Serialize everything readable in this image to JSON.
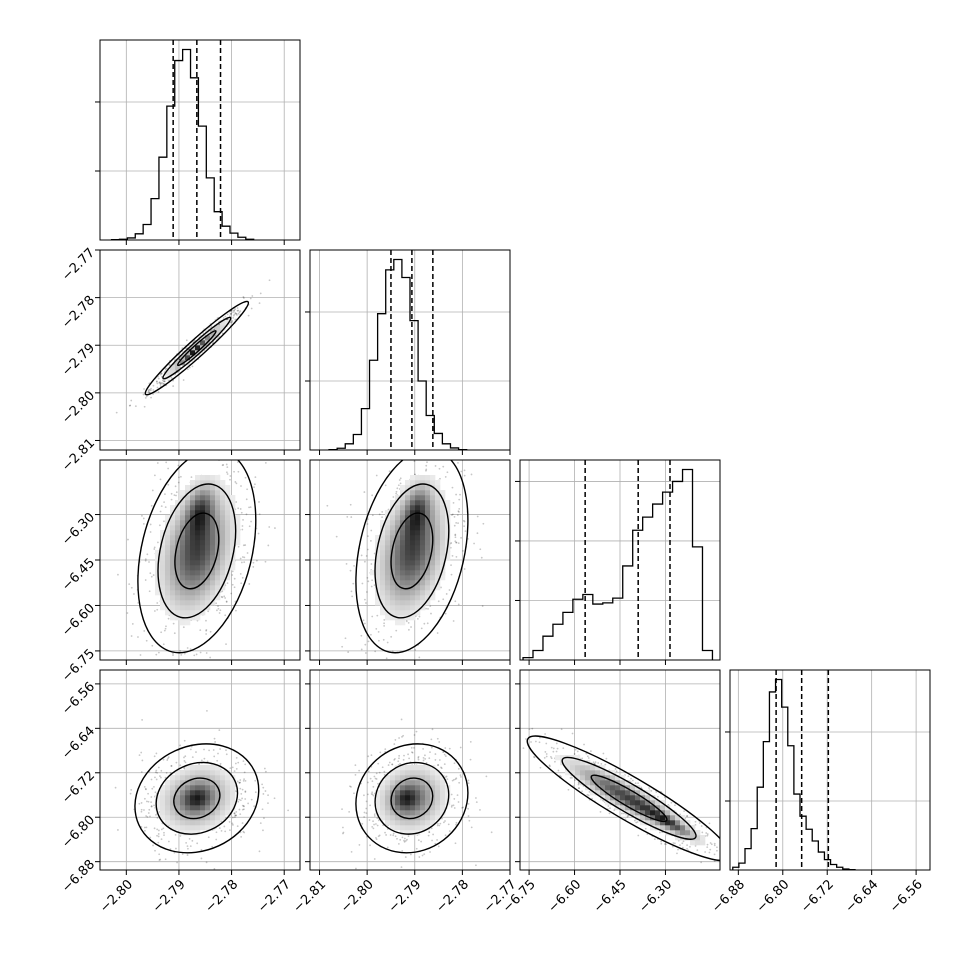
{
  "chart_data": {
    "type": "corner",
    "grid": true,
    "params": [
      {
        "range": [
          -2.805,
          -2.767
        ],
        "ticks": [
          -2.8,
          -2.79,
          -2.78,
          -2.77
        ],
        "tick_labels": [
          "−2.80",
          "−2.79",
          "−2.78",
          "−2.77"
        ],
        "quantiles": [
          -2.7911,
          -2.7866,
          -2.7821
        ],
        "hist": {
          "edges_start": -2.8028,
          "bin_width": 0.0015,
          "counts": [
            1,
            2,
            6,
            18,
            45,
            120,
            240,
            388,
            520,
            552,
            470,
            330,
            180,
            82,
            40,
            20,
            8,
            2
          ]
        }
      },
      {
        "range": [
          -2.812,
          -2.77
        ],
        "ticks": [
          -2.81,
          -2.8,
          -2.79,
          -2.78,
          -2.77
        ],
        "tick_labels": [
          "−2.81",
          "−2.80",
          "−2.79",
          "−2.78",
          "−2.77"
        ],
        "quantiles": [
          -2.795,
          -2.7906,
          -2.7862
        ],
        "hist": {
          "edges_start": -2.808,
          "bin_width": 0.0017,
          "counts": [
            1,
            5,
            18,
            45,
            120,
            260,
            395,
            522,
            552,
            500,
            375,
            200,
            100,
            48,
            18,
            6,
            1
          ]
        }
      },
      {
        "range": [
          -6.78,
          -6.12
        ],
        "ticks": [
          -6.75,
          -6.6,
          -6.45,
          -6.3
        ],
        "tick_labels": [
          "−6.75",
          "−6.60",
          "−6.45",
          "−6.30"
        ],
        "quantiles": [
          -6.565,
          -6.39,
          -6.285
        ],
        "hist": {
          "edges_start": -6.77,
          "bin_width": 0.0329,
          "counts": [
            4,
            16,
            40,
            60,
            80,
            102,
            110,
            94,
            96,
            104,
            158,
            218,
            240,
            262,
            282,
            300,
            320,
            190,
            16
          ]
        }
      },
      {
        "range": [
          -6.895,
          -6.535
        ],
        "ticks": [
          -6.88,
          -6.8,
          -6.72,
          -6.64,
          -6.56
        ],
        "tick_labels": [
          "−6.88",
          "−6.80",
          "−6.72",
          "−6.64",
          "−6.56"
        ],
        "quantiles": [
          -6.812,
          -6.766,
          -6.718
        ],
        "hist": {
          "edges_start": -6.89,
          "bin_width": 0.011,
          "counts": [
            8,
            20,
            62,
            120,
            240,
            372,
            516,
            552,
            472,
            360,
            220,
            156,
            118,
            84,
            52,
            30,
            16,
            8,
            3,
            1
          ]
        }
      }
    ],
    "pairs": [
      {
        "row": 1,
        "col": 0,
        "mean": [
          -2.7866,
          -2.7906
        ],
        "sigma": [
          0.0035,
          0.0035
        ],
        "rho": 0.97,
        "density_peak": [
          -2.7875,
          -2.7915
        ]
      },
      {
        "row": 2,
        "col": 0,
        "mean": [
          -2.7866,
          -6.42
        ],
        "sigma": [
          0.004,
          0.12
        ],
        "rho": 0.3,
        "density_peak": [
          -2.786,
          -6.285
        ]
      },
      {
        "row": 2,
        "col": 1,
        "mean": [
          -2.7906,
          -6.42
        ],
        "sigma": [
          0.0042,
          0.12
        ],
        "rho": 0.3,
        "density_peak": [
          -2.7895,
          -6.285
        ]
      },
      {
        "row": 3,
        "col": 0,
        "mean": [
          -2.7866,
          -6.766
        ],
        "sigma": [
          0.0042,
          0.035
        ],
        "rho": 0.15,
        "density_peak": [
          -2.7866,
          -6.766
        ]
      },
      {
        "row": 3,
        "col": 1,
        "mean": [
          -2.7906,
          -6.766
        ],
        "sigma": [
          0.0042,
          0.035
        ],
        "rho": 0.1,
        "density_peak": [
          -2.792,
          -6.766
        ]
      },
      {
        "row": 3,
        "col": 2,
        "mean": [
          -6.42,
          -6.766
        ],
        "sigma": [
          0.12,
          0.04
        ],
        "rho": -0.92,
        "density_peak": [
          -6.285,
          -6.81
        ]
      }
    ]
  }
}
